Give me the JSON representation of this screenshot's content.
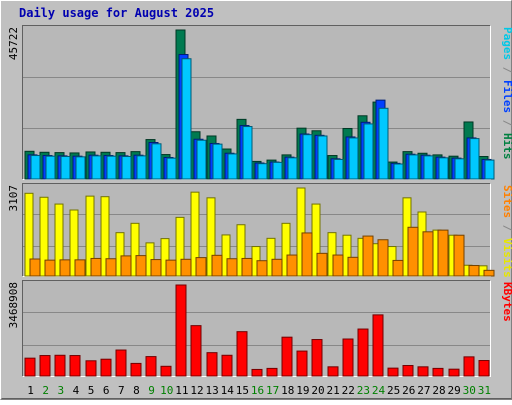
{
  "chart_data": {
    "type": "bar",
    "title": "Daily usage for August 2025",
    "categories": [
      "1",
      "2",
      "3",
      "4",
      "5",
      "6",
      "7",
      "8",
      "9",
      "10",
      "11",
      "12",
      "13",
      "14",
      "15",
      "16",
      "17",
      "18",
      "19",
      "20",
      "21",
      "22",
      "23",
      "24",
      "25",
      "26",
      "27",
      "28",
      "29",
      "30",
      "31"
    ],
    "weekend_days": [
      "2",
      "3",
      "9",
      "10",
      "16",
      "17",
      "23",
      "24",
      "30",
      "31"
    ],
    "panels": [
      {
        "id": "hits-files-pages",
        "max_label": "45722",
        "ymax": 45722,
        "right_labels": [
          {
            "text": "Pages",
            "color": "#00c8e6"
          },
          {
            "text": " / ",
            "color": "#888888"
          },
          {
            "text": "Files",
            "color": "#0040ff"
          },
          {
            "text": " / ",
            "color": "#888888"
          },
          {
            "text": "Hits",
            "color": "#008040"
          }
        ],
        "series": [
          {
            "name": "Hits",
            "color": "#007a50",
            "values": [
              8500,
              8200,
              8100,
              8000,
              8300,
              8200,
              8100,
              8400,
              12100,
              7500,
              45722,
              14500,
              13200,
              9200,
              18300,
              5400,
              5800,
              7400,
              15600,
              14800,
              7200,
              15500,
              19400,
              23600,
              5200,
              8400,
              7900,
              7400,
              7000,
              17500,
              6900
            ]
          },
          {
            "name": "Files",
            "color": "#0040ff",
            "values": [
              7400,
              7200,
              7100,
              7000,
              7300,
              7200,
              7100,
              7300,
              11200,
              6600,
              38200,
              12200,
              10900,
              7900,
              16400,
              4900,
              5200,
              6700,
              13800,
              13400,
              6200,
              12900,
              17400,
              24200,
              4800,
              7600,
              7300,
              6700,
              6400,
              12600,
              6000
            ]
          },
          {
            "name": "Pages",
            "color": "#00c8ff",
            "values": [
              7200,
              7000,
              6900,
              6800,
              7100,
              7000,
              6900,
              7100,
              10800,
              6400,
              36900,
              11900,
              10700,
              7700,
              16100,
              4700,
              5100,
              6500,
              13600,
              13200,
              6000,
              12600,
              16900,
              21700,
              4600,
              7400,
              7100,
              6500,
              6200,
              12400,
              5800
            ]
          }
        ]
      },
      {
        "id": "visits-sites",
        "max_label": "3107",
        "ymax": 3107,
        "right_labels": [
          {
            "text": "Sites",
            "color": "#ff8000"
          },
          {
            "text": " / ",
            "color": "#888888"
          },
          {
            "text": "Visits",
            "color": "#e6e600"
          }
        ],
        "series": [
          {
            "name": "Visits",
            "color": "#ffff00",
            "values": [
              2920,
              2780,
              2540,
              2330,
              2820,
              2800,
              1530,
              1860,
              1170,
              1320,
              2070,
              2960,
              2760,
              1450,
              1810,
              1040,
              1330,
              1860,
              3107,
              2540,
              1530,
              1440,
              1330,
              1140,
              1040,
              2760,
              2260,
              1620,
              1440,
              380,
              360
            ]
          },
          {
            "name": "Sites",
            "color": "#ff9000",
            "values": [
              600,
              560,
              570,
              570,
              620,
              610,
              710,
              720,
              580,
              560,
              590,
              650,
              730,
              610,
              620,
              540,
              590,
              740,
              1520,
              800,
              740,
              660,
              1410,
              1280,
              550,
              1720,
              1560,
              1620,
              1440,
              370,
              200
            ]
          }
        ]
      },
      {
        "id": "kbytes",
        "max_label": "3468908",
        "ymax": 3468908,
        "right_labels": [
          {
            "text": "KBytes",
            "color": "#ff0000"
          }
        ],
        "series": [
          {
            "name": "KBytes",
            "color": "#ff0000",
            "values": [
              680000,
              780000,
              790000,
              780000,
              580000,
              640000,
              990000,
              480000,
              740000,
              370000,
              3468908,
              1920000,
              890000,
              790000,
              1690000,
              250000,
              290000,
              1480000,
              950000,
              1390000,
              350000,
              1410000,
              1790000,
              2330000,
              300000,
              400000,
              350000,
              290000,
              260000,
              730000,
              590000
            ]
          }
        ]
      }
    ]
  }
}
